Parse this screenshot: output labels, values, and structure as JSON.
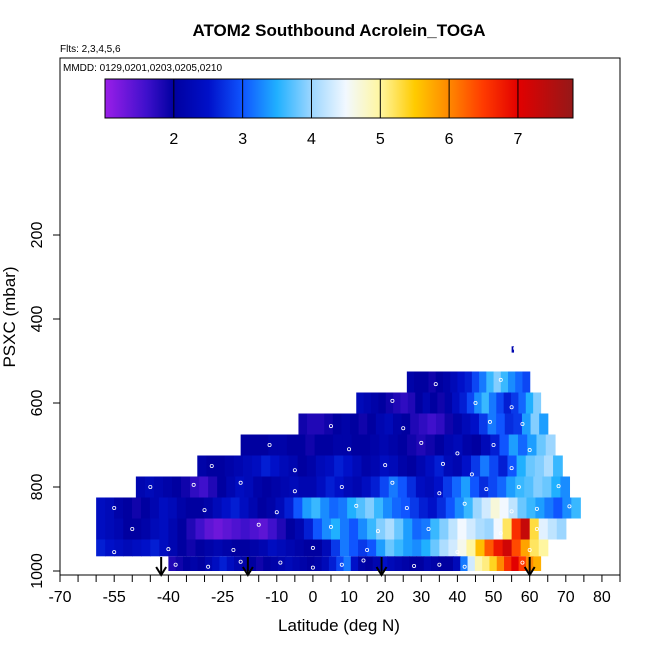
{
  "chart_data": {
    "type": "heatmap",
    "title": "ATOM2 Southbound Acrolein_TOGA",
    "flights_label": "Flts: 2,3,4,5,6",
    "dates_label": "MMDD: 0129,0201,0203,0205,0210",
    "xlabel": "Latitude (deg N)",
    "ylabel": "PSXC (mbar)",
    "xlim": [
      -70,
      85
    ],
    "ylim": [
      1000,
      0
    ],
    "x_ticks": [
      "-70",
      "-55",
      "-40",
      "-25",
      "-10",
      "0",
      "10",
      "20",
      "30",
      "40",
      "50",
      "60",
      "70",
      "80"
    ],
    "y_ticks": [
      "200",
      "400",
      "600",
      "800",
      "1000"
    ],
    "colorbar": {
      "range": [
        1.0,
        7.8
      ],
      "ticks": [
        "2",
        "3",
        "4",
        "5",
        "6",
        "7"
      ],
      "stops": [
        [
          1.0,
          "#9a1ee8"
        ],
        [
          1.6,
          "#3f10cc"
        ],
        [
          2.0,
          "#0000a0"
        ],
        [
          2.5,
          "#0010c8"
        ],
        [
          3.0,
          "#0f55ff"
        ],
        [
          3.5,
          "#20b0ff"
        ],
        [
          4.0,
          "#9cd6ff"
        ],
        [
          4.5,
          "#f2f8ff"
        ],
        [
          5.0,
          "#fff6a0"
        ],
        [
          5.5,
          "#ffcb00"
        ],
        [
          6.0,
          "#ff8800"
        ],
        [
          6.5,
          "#ff3a00"
        ],
        [
          7.0,
          "#e20000"
        ],
        [
          7.8,
          "#951818"
        ]
      ]
    },
    "flight_arrows_lat": [
      -42,
      -18,
      19,
      60
    ],
    "rows": [
      {
        "p_top": 465,
        "p_bot": 480,
        "lat_start": 55,
        "lat_end": 55.5,
        "values": [
          2.2
        ]
      },
      {
        "p_top": 525,
        "p_bot": 575,
        "lat_start": 26,
        "lat_end": 60,
        "values": [
          2.1,
          2.0,
          2.0,
          1.9,
          2.0,
          2.1,
          2.3,
          2.5,
          2.6,
          2.9,
          3.2,
          3.6,
          3.9,
          3.6,
          3.3,
          3.1,
          2.9
        ]
      },
      {
        "p_top": 575,
        "p_bot": 625,
        "lat_start": 12,
        "lat_end": 63,
        "values": [
          2.3,
          2.2,
          2.1,
          2.0,
          1.9,
          1.8,
          1.7,
          1.8,
          2.0,
          2.2,
          2.0,
          1.9,
          2.1,
          2.4,
          2.6,
          2.9,
          3.3,
          3.6,
          3.2,
          2.9,
          2.6,
          2.8,
          3.1,
          3.5,
          3.9
        ]
      },
      {
        "p_top": 625,
        "p_bot": 675,
        "lat_start": -4,
        "lat_end": 65,
        "values": [
          1.9,
          1.8,
          1.8,
          1.9,
          2.0,
          2.1,
          2.0,
          1.9,
          2.0,
          2.2,
          2.3,
          2.1,
          2.0,
          1.8,
          1.7,
          1.6,
          1.7,
          1.9,
          2.1,
          2.3,
          2.5,
          2.8,
          3.2,
          3.0,
          2.7,
          2.8,
          3.4,
          3.9,
          3.4
        ]
      },
      {
        "p_top": 675,
        "p_bot": 725,
        "lat_start": -20,
        "lat_end": 67,
        "values": [
          2.0,
          2.0,
          2.0,
          2.1,
          2.1,
          2.0,
          2.0,
          1.9,
          2.0,
          2.0,
          2.1,
          2.1,
          2.0,
          2.0,
          2.1,
          2.2,
          2.1,
          2.0,
          1.9,
          1.8,
          1.9,
          2.0,
          2.2,
          2.3,
          2.1,
          2.0,
          2.3,
          2.6,
          3.0,
          3.4,
          3.1,
          3.4,
          3.8,
          4.0
        ]
      },
      {
        "p_top": 725,
        "p_bot": 775,
        "lat_start": -32,
        "lat_end": 69,
        "values": [
          2.1,
          2.0,
          2.0,
          2.1,
          2.2,
          2.3,
          2.4,
          2.6,
          2.5,
          2.3,
          2.2,
          2.0,
          2.1,
          2.3,
          2.4,
          2.6,
          2.5,
          2.3,
          2.1,
          2.2,
          2.4,
          2.3,
          2.1,
          2.0,
          2.2,
          2.4,
          2.6,
          2.3,
          2.2,
          2.5,
          2.8,
          3.2,
          2.9,
          2.6,
          3.0,
          3.5,
          3.8,
          3.9,
          4.1,
          3.6
        ]
      },
      {
        "p_top": 775,
        "p_bot": 825,
        "lat_start": -49,
        "lat_end": 71,
        "values": [
          2.2,
          2.3,
          2.2,
          2.1,
          2.0,
          1.9,
          1.7,
          1.6,
          1.8,
          2.0,
          2.2,
          2.4,
          2.3,
          2.1,
          2.0,
          2.1,
          2.2,
          2.3,
          2.2,
          2.2,
          2.4,
          2.6,
          2.5,
          2.3,
          2.2,
          2.4,
          2.6,
          2.9,
          3.2,
          3.0,
          2.7,
          2.4,
          2.3,
          2.5,
          2.8,
          3.1,
          3.4,
          3.0,
          2.7,
          2.9,
          3.1,
          3.4,
          3.6,
          3.7,
          3.9,
          3.8,
          3.5,
          3.3
        ]
      },
      {
        "p_top": 825,
        "p_bot": 875,
        "lat_start": -60,
        "lat_end": 74,
        "values": [
          2.4,
          2.3,
          2.1,
          2.0,
          1.9,
          2.0,
          2.2,
          2.4,
          2.3,
          2.1,
          2.0,
          2.0,
          2.1,
          2.3,
          2.5,
          2.6,
          2.4,
          2.2,
          2.0,
          2.1,
          2.3,
          2.6,
          3.0,
          3.4,
          3.6,
          3.3,
          3.1,
          3.2,
          3.5,
          3.7,
          3.9,
          3.6,
          3.3,
          3.1,
          3.0,
          2.8,
          2.6,
          2.5,
          2.7,
          3.0,
          3.3,
          3.6,
          4.0,
          4.3,
          4.7,
          4.5,
          4.2,
          3.8,
          3.6,
          3.4,
          3.2,
          3.0,
          3.3,
          3.6
        ]
      },
      {
        "p_top": 875,
        "p_bot": 925,
        "lat_start": -60,
        "lat_end": 70,
        "values": [
          2.4,
          2.3,
          2.2,
          2.0,
          2.0,
          2.1,
          2.3,
          2.4,
          2.2,
          2.0,
          1.8,
          1.6,
          1.4,
          1.3,
          1.4,
          1.5,
          1.6,
          1.5,
          1.4,
          1.6,
          1.8,
          2.0,
          2.2,
          2.6,
          3.0,
          3.3,
          3.5,
          3.2,
          3.0,
          3.3,
          3.6,
          3.9,
          4.1,
          3.8,
          3.4,
          3.1,
          3.2,
          3.6,
          3.9,
          4.2,
          4.5,
          4.3,
          4.1,
          4.0,
          4.5,
          5.2,
          6.6,
          7.3,
          5.3,
          4.4,
          4.2,
          4.0
        ]
      },
      {
        "p_top": 925,
        "p_bot": 965,
        "lat_start": -60,
        "lat_end": 65,
        "values": [
          2.6,
          2.5,
          2.4,
          2.3,
          2.4,
          2.5,
          2.6,
          2.4,
          2.2,
          2.0,
          1.9,
          2.0,
          2.1,
          2.2,
          2.1,
          2.0,
          2.0,
          2.1,
          2.2,
          2.4,
          2.3,
          2.2,
          2.1,
          2.0,
          2.0,
          2.3,
          2.8,
          3.2,
          3.0,
          2.8,
          3.0,
          3.4,
          3.8,
          3.6,
          3.4,
          3.3,
          3.5,
          3.8,
          4.1,
          4.3,
          4.6,
          5.0,
          5.6,
          6.3,
          6.8,
          7.2,
          6.4,
          5.8,
          5.2,
          5.0
        ]
      },
      {
        "p_top": 965,
        "p_bot": 1000,
        "lat_start": -40,
        "lat_end": 63,
        "values": [
          1.8,
          1.9,
          2.0,
          2.1,
          2.0,
          2.2,
          2.4,
          2.6,
          2.4,
          2.2,
          2.1,
          2.0,
          1.9,
          2.0,
          2.1,
          2.2,
          2.3,
          2.2,
          2.1,
          2.0,
          2.1,
          2.3,
          2.6,
          2.9,
          3.2,
          2.5,
          2.1,
          2.0,
          2.2,
          2.5,
          2.3,
          2.2,
          2.1,
          2.0,
          2.0,
          2.2,
          2.1,
          2.0,
          2.0,
          2.3,
          3.2,
          4.3,
          4.9,
          5.1,
          5.4,
          6.0,
          6.6,
          7.0,
          6.5,
          6.0,
          5.7
        ]
      }
    ],
    "samples": [
      [
        56,
        470
      ],
      [
        34,
        555
      ],
      [
        52,
        545
      ],
      [
        22,
        595
      ],
      [
        45,
        600
      ],
      [
        55,
        610
      ],
      [
        5,
        655
      ],
      [
        25,
        660
      ],
      [
        49,
        645
      ],
      [
        58,
        650
      ],
      [
        -12,
        700
      ],
      [
        10,
        710
      ],
      [
        30,
        695
      ],
      [
        40,
        720
      ],
      [
        50,
        700
      ],
      [
        60,
        712
      ],
      [
        -28,
        750
      ],
      [
        -5,
        760
      ],
      [
        20,
        748
      ],
      [
        36,
        745
      ],
      [
        44,
        770
      ],
      [
        55,
        755
      ],
      [
        -45,
        800
      ],
      [
        -33,
        795
      ],
      [
        -20,
        790
      ],
      [
        -5,
        810
      ],
      [
        8,
        800
      ],
      [
        22,
        790
      ],
      [
        35,
        815
      ],
      [
        48,
        805
      ],
      [
        57,
        800
      ],
      [
        68,
        798
      ],
      [
        -55,
        850
      ],
      [
        -30,
        855
      ],
      [
        -10,
        860
      ],
      [
        12,
        845
      ],
      [
        26,
        850
      ],
      [
        42,
        840
      ],
      [
        55,
        858
      ],
      [
        62,
        852
      ],
      [
        71,
        846
      ],
      [
        -50,
        900
      ],
      [
        -15,
        890
      ],
      [
        5,
        895
      ],
      [
        18,
        905
      ],
      [
        32,
        900
      ],
      [
        52,
        910
      ],
      [
        62,
        900
      ],
      [
        -55,
        955
      ],
      [
        -40,
        948
      ],
      [
        -22,
        950
      ],
      [
        0,
        945
      ],
      [
        15,
        950
      ],
      [
        40,
        955
      ],
      [
        60,
        950
      ],
      [
        -38,
        985
      ],
      [
        -29,
        990
      ],
      [
        -20,
        978
      ],
      [
        -9,
        980
      ],
      [
        0,
        992
      ],
      [
        8,
        985
      ],
      [
        14,
        975
      ],
      [
        28,
        988
      ],
      [
        35,
        985
      ],
      [
        42,
        990
      ],
      [
        58,
        980
      ]
    ]
  }
}
